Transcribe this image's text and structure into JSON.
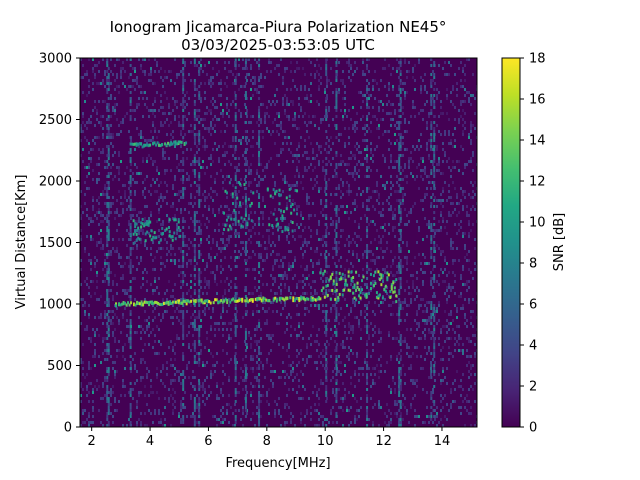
{
  "chart_data": {
    "type": "heatmap",
    "title_line1": "Ionogram Jicamarca-Piura Polarization NE45°",
    "title_line2": "03/03/2025-03:53:05 UTC",
    "xlabel": "Frequency[MHz]",
    "ylabel": "Virtual Distance[Km]",
    "xlim": [
      1.6,
      15.2
    ],
    "ylim": [
      0,
      3000
    ],
    "x_ticks": [
      2,
      4,
      6,
      8,
      10,
      12,
      14
    ],
    "y_ticks": [
      0,
      500,
      1000,
      1500,
      2000,
      2500,
      3000
    ],
    "colorbar": {
      "label": "SNR [dB]",
      "range": [
        0,
        18
      ],
      "ticks": [
        0,
        2,
        4,
        6,
        8,
        10,
        12,
        14,
        16,
        18
      ],
      "colormap": "viridis"
    },
    "background_snr": 0,
    "noise_vertical_bands_mhz": [
      2.5,
      2.55,
      3.3,
      5.1,
      5.5,
      5.65,
      6.9,
      7.25,
      7.7,
      10.0,
      10.35,
      11.4,
      12.5,
      12.55,
      13.6,
      13.7
    ],
    "echo_traces": [
      {
        "name_visible": false,
        "x_start": 2.8,
        "x_end": 9.8,
        "y_start": 1010,
        "y_end": 1060,
        "snr": 18
      },
      {
        "name_visible": false,
        "x_start": 9.8,
        "x_end": 12.4,
        "y_start": 1030,
        "y_end": 1280,
        "snr": 16
      },
      {
        "name_visible": false,
        "x_start": 3.3,
        "x_end": 5.0,
        "y_start": 1500,
        "y_end": 1700,
        "snr": 12
      },
      {
        "name_visible": false,
        "x_start": 6.5,
        "x_end": 7.5,
        "y_start": 1600,
        "y_end": 2000,
        "snr": 12
      },
      {
        "name_visible": false,
        "x_start": 8.0,
        "x_end": 9.0,
        "y_start": 1600,
        "y_end": 1950,
        "snr": 12
      },
      {
        "name_visible": false,
        "x_start": 3.3,
        "x_end": 5.2,
        "y_start": 2300,
        "y_end": 2320,
        "snr": 14
      }
    ]
  }
}
